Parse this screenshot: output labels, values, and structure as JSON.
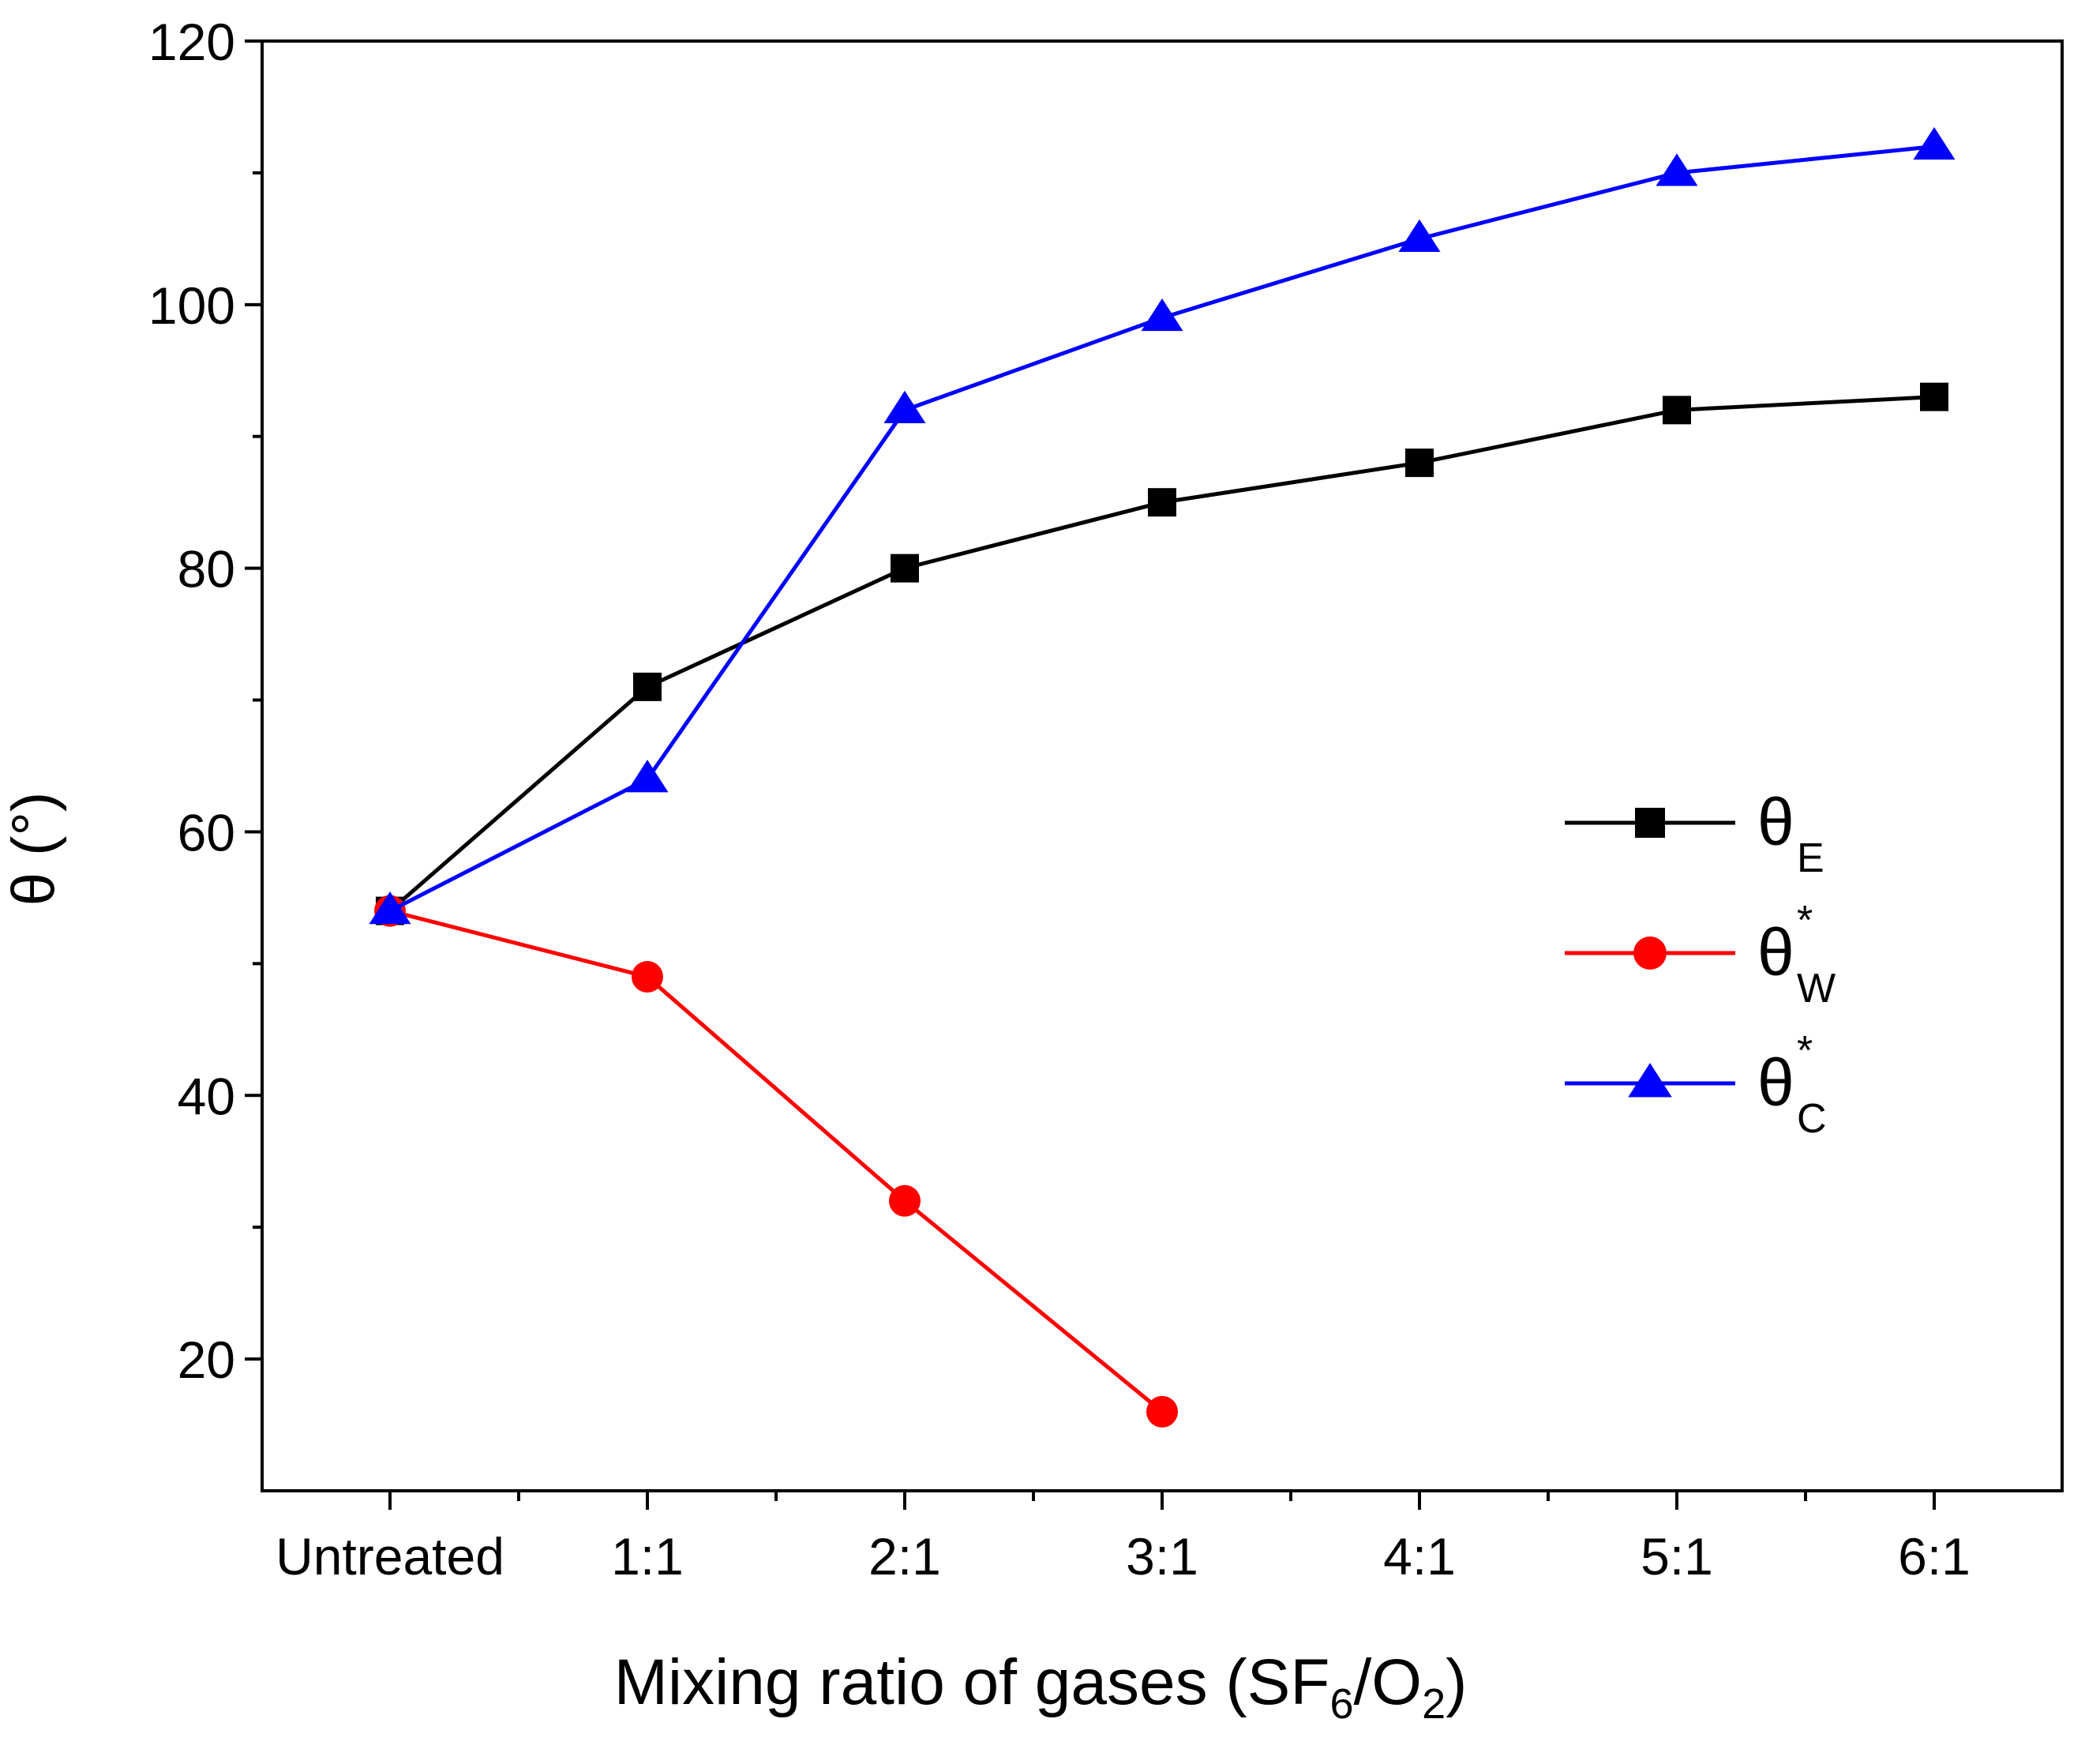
{
  "chart_data": {
    "type": "line",
    "title": "",
    "xlabel": {
      "main": "Mixing ratio of gases (SF",
      "sub1": "6",
      "mid": "/O",
      "sub2": "2",
      "end": ")"
    },
    "ylabel": "θ (°)",
    "categories": [
      "Untreated",
      "1:1",
      "2:1",
      "3:1",
      "4:1",
      "5:1",
      "6:1"
    ],
    "ylim": [
      10,
      120
    ],
    "yticks": [
      20,
      40,
      60,
      80,
      100,
      120
    ],
    "yticks_minor": [
      30,
      50,
      70,
      90,
      110
    ],
    "legend_position": "center-right",
    "series": [
      {
        "name": "θE",
        "legend_base": "θ",
        "legend_sub": "E",
        "legend_sup": "",
        "color": "#000000",
        "marker": "square",
        "values": [
          54,
          71,
          80,
          85,
          88,
          92,
          93
        ]
      },
      {
        "name": "θ*W",
        "legend_base": "θ",
        "legend_sub": "W",
        "legend_sup": "*",
        "color": "#ff0000",
        "marker": "circle",
        "values": [
          54,
          49,
          32,
          16,
          null,
          null,
          null
        ]
      },
      {
        "name": "θ*C",
        "legend_base": "θ",
        "legend_sub": "C",
        "legend_sup": "*",
        "color": "#0000ff",
        "marker": "triangle",
        "values": [
          54,
          64,
          92,
          99,
          105,
          110,
          112
        ]
      }
    ]
  }
}
